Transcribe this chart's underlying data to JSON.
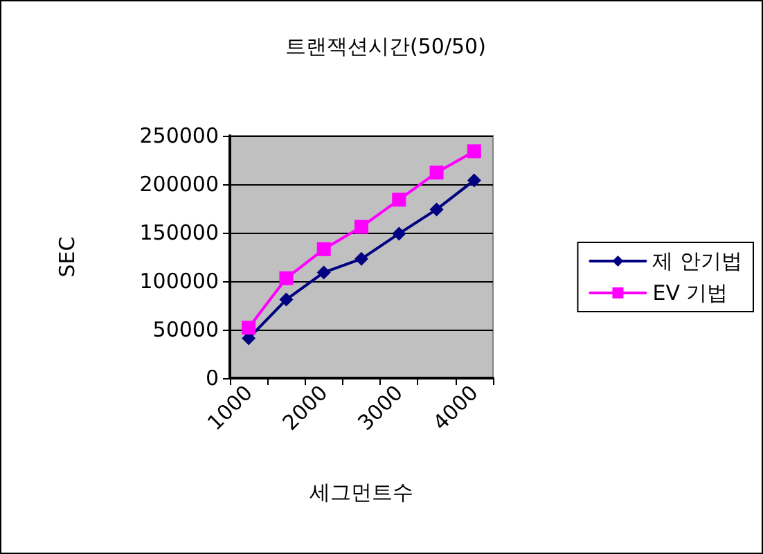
{
  "chart_data": {
    "type": "line",
    "title": "트랜잭션시간(50/50)",
    "xlabel": "세그먼트수",
    "ylabel": "SEC",
    "categories": [
      "1000",
      null,
      "2000",
      null,
      "3000",
      null,
      "4000"
    ],
    "series": [
      {
        "name": "제 안기법",
        "color": "#000080",
        "marker": "diamond",
        "values": [
          41000,
          81000,
          109000,
          123000,
          149000,
          174000,
          204000
        ]
      },
      {
        "name": "EV 기법",
        "color": "#ff00ff",
        "marker": "square",
        "values": [
          52000,
          103000,
          133000,
          156000,
          184000,
          212000,
          234000
        ]
      }
    ],
    "ylim": [
      0,
      250000
    ],
    "yticks": [
      0,
      50000,
      100000,
      150000,
      200000,
      250000
    ],
    "grid": "y",
    "legend": "right",
    "line_style": "solid"
  }
}
